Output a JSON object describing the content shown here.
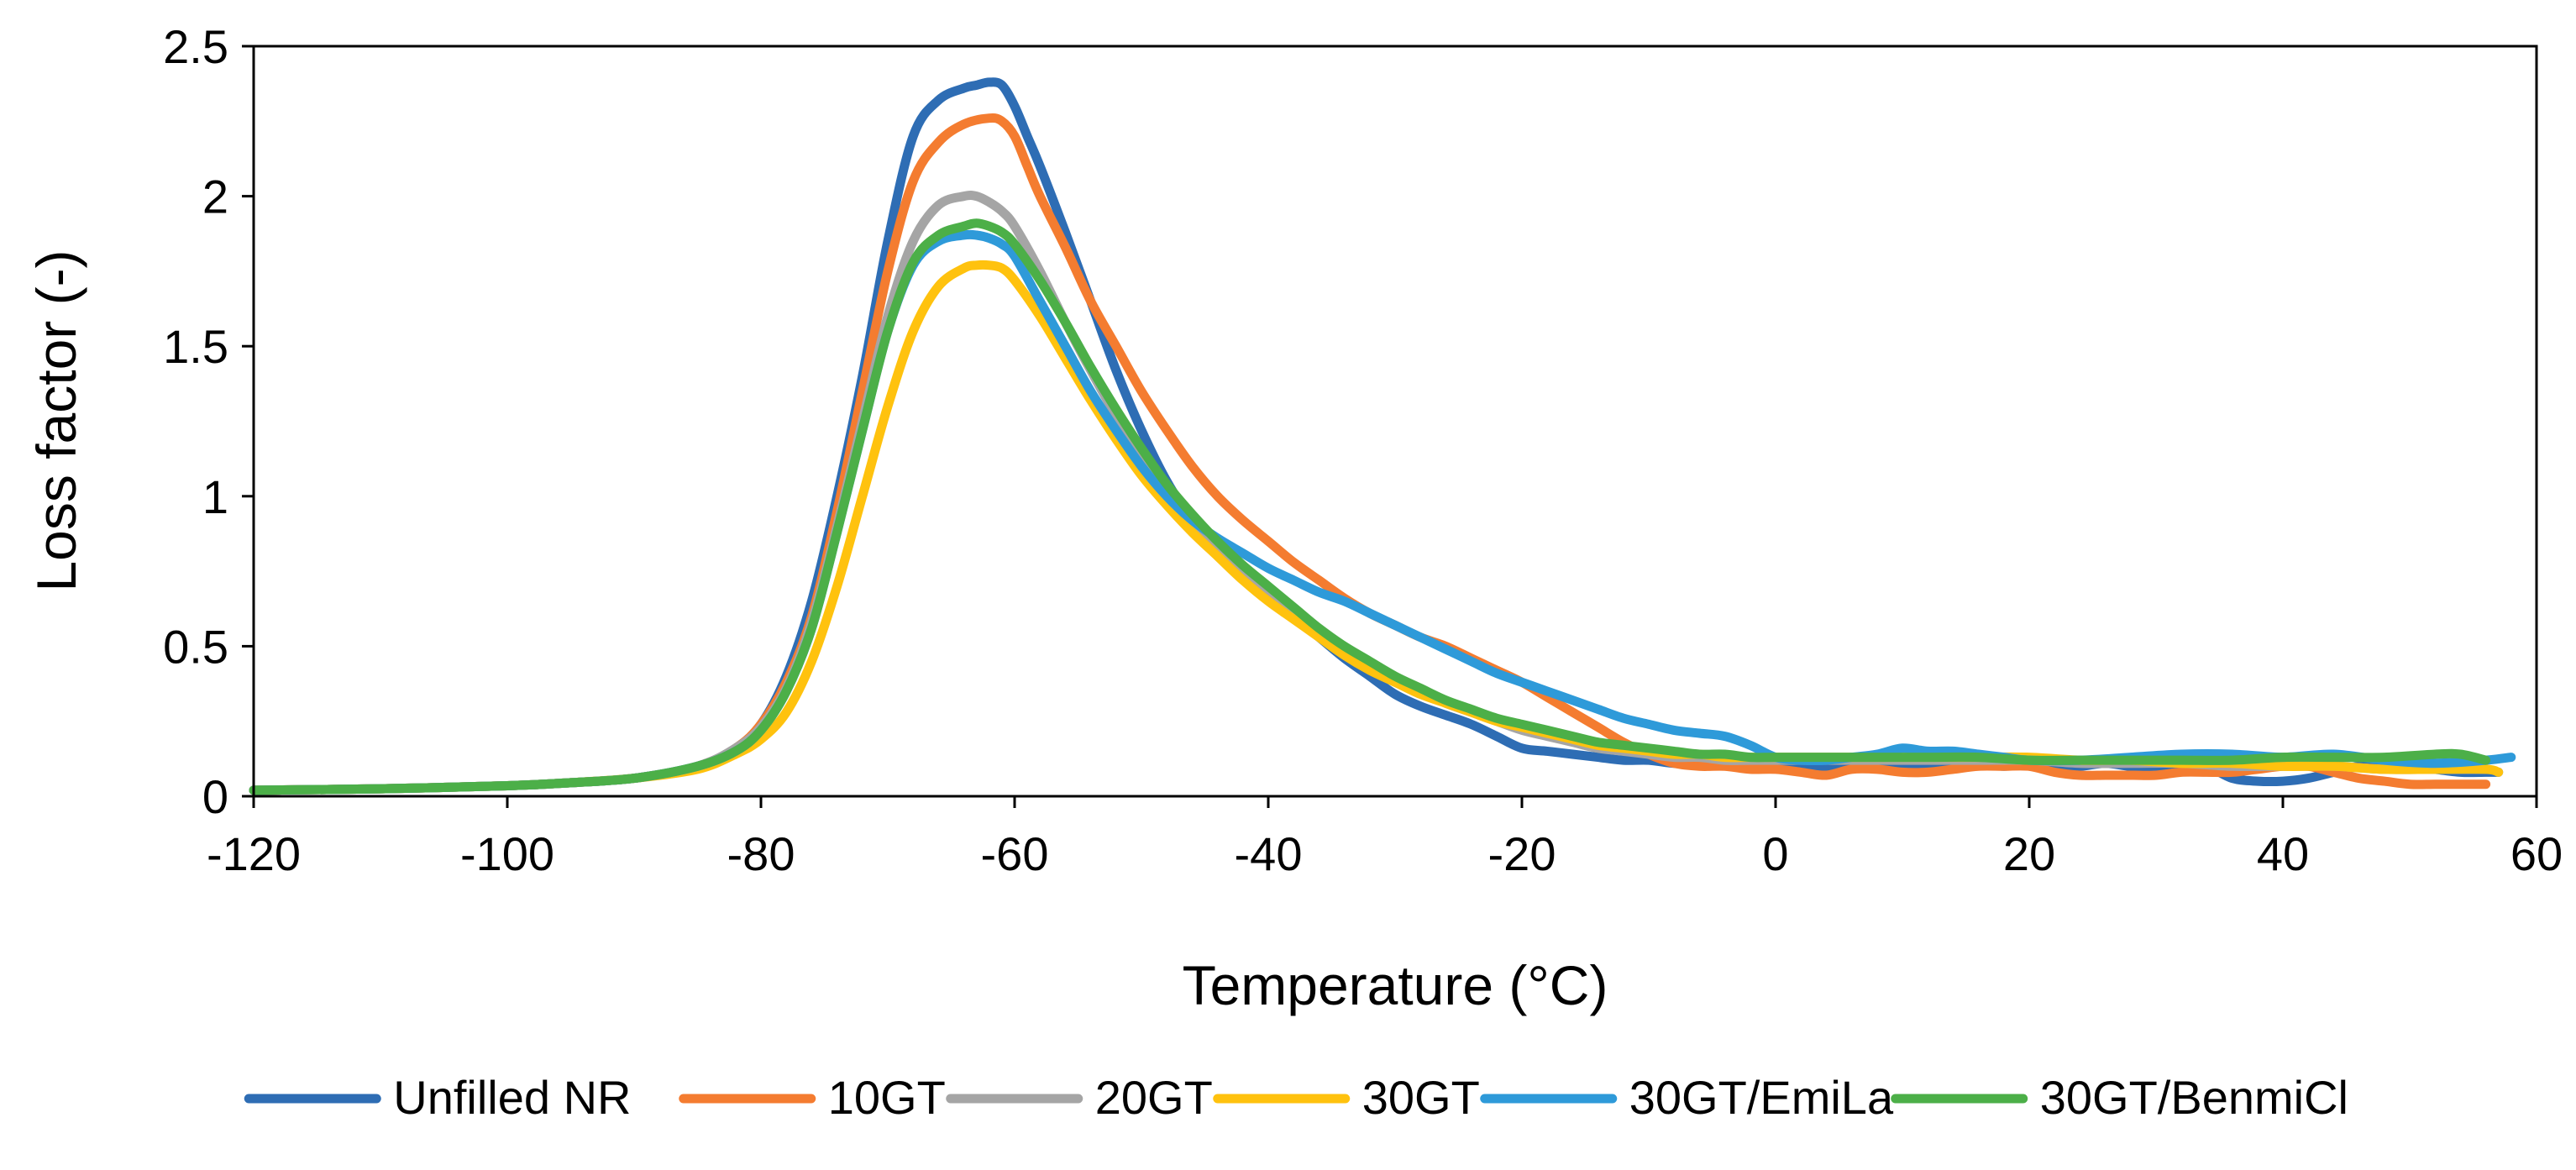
{
  "chart_data": {
    "type": "line",
    "title": "",
    "xlabel": "Temperature (°C)",
    "ylabel": "Loss factor (-)",
    "xlim": [
      -120,
      60
    ],
    "ylim": [
      0,
      2.5
    ],
    "xticks": [
      -120,
      -100,
      -80,
      -60,
      -40,
      -20,
      0,
      20,
      40,
      60
    ],
    "yticks": [
      0,
      0.5,
      1,
      1.5,
      2,
      2.5
    ],
    "xtick_labels": [
      "-120",
      "-100",
      "-80",
      "-60",
      "-40",
      "-20",
      "0",
      "20",
      "40",
      "60"
    ],
    "ytick_labels": [
      "0",
      "0.5",
      "1",
      "1.5",
      "2",
      "2.5"
    ],
    "grid": false,
    "legend_position": "bottom",
    "series": [
      {
        "name": "Unfilled NR",
        "color": "#2E6DB4",
        "x": [
          -120,
          -110,
          -100,
          -95,
          -90,
          -85,
          -82,
          -80,
          -78,
          -76,
          -74,
          -72,
          -70,
          -68,
          -66,
          -64,
          -63,
          -62,
          -61,
          -60,
          -59,
          -58,
          -56,
          -54,
          -52,
          -50,
          -48,
          -46,
          -44,
          -42,
          -40,
          -38,
          -36,
          -34,
          -32,
          -30,
          -28,
          -26,
          -24,
          -22,
          -20,
          -18,
          -16,
          -14,
          -12,
          -10,
          -8,
          -6,
          -4,
          -2,
          0,
          2,
          4,
          6,
          8,
          10,
          12,
          14,
          16,
          18,
          20,
          22,
          24,
          26,
          28,
          30,
          32,
          34,
          36,
          38,
          40,
          42,
          44,
          46,
          48,
          50,
          52,
          54,
          56,
          57
        ],
        "y": [
          0.02,
          0.025,
          0.035,
          0.045,
          0.06,
          0.1,
          0.16,
          0.24,
          0.4,
          0.65,
          1.0,
          1.4,
          1.85,
          2.2,
          2.32,
          2.36,
          2.37,
          2.38,
          2.37,
          2.3,
          2.2,
          2.1,
          1.88,
          1.65,
          1.42,
          1.22,
          1.05,
          0.92,
          0.82,
          0.74,
          0.67,
          0.6,
          0.53,
          0.46,
          0.4,
          0.34,
          0.3,
          0.27,
          0.24,
          0.2,
          0.16,
          0.15,
          0.14,
          0.13,
          0.12,
          0.12,
          0.11,
          0.11,
          0.11,
          0.1,
          0.1,
          0.1,
          0.1,
          0.1,
          0.1,
          0.1,
          0.11,
          0.1,
          0.11,
          0.1,
          0.11,
          0.1,
          0.1,
          0.11,
          0.1,
          0.1,
          0.11,
          0.1,
          0.06,
          0.05,
          0.05,
          0.06,
          0.08,
          0.1,
          0.1,
          0.1,
          0.09,
          0.08,
          0.08,
          0.08
        ]
      },
      {
        "name": "10GT",
        "color": "#F47C30",
        "x": [
          -120,
          -110,
          -100,
          -95,
          -90,
          -85,
          -82,
          -80,
          -78,
          -76,
          -74,
          -72,
          -70,
          -68,
          -66,
          -64,
          -62,
          -61,
          -60,
          -59,
          -58,
          -56,
          -54,
          -52,
          -50,
          -48,
          -46,
          -44,
          -42,
          -40,
          -38,
          -36,
          -34,
          -32,
          -30,
          -28,
          -26,
          -24,
          -22,
          -20,
          -18,
          -16,
          -14,
          -12,
          -10,
          -8,
          -6,
          -4,
          -2,
          0,
          2,
          4,
          6,
          8,
          10,
          12,
          14,
          16,
          18,
          20,
          22,
          24,
          26,
          28,
          30,
          32,
          34,
          36,
          38,
          40,
          42,
          44,
          46,
          48,
          50,
          52,
          54,
          56
        ],
        "y": [
          0.02,
          0.025,
          0.035,
          0.045,
          0.06,
          0.1,
          0.16,
          0.24,
          0.38,
          0.6,
          0.95,
          1.35,
          1.75,
          2.05,
          2.18,
          2.24,
          2.26,
          2.25,
          2.2,
          2.1,
          2.0,
          1.83,
          1.65,
          1.5,
          1.35,
          1.22,
          1.1,
          1.0,
          0.92,
          0.85,
          0.78,
          0.72,
          0.66,
          0.61,
          0.57,
          0.53,
          0.5,
          0.46,
          0.42,
          0.38,
          0.33,
          0.28,
          0.23,
          0.18,
          0.14,
          0.11,
          0.1,
          0.1,
          0.09,
          0.09,
          0.08,
          0.07,
          0.09,
          0.09,
          0.08,
          0.08,
          0.09,
          0.1,
          0.1,
          0.1,
          0.08,
          0.07,
          0.07,
          0.07,
          0.07,
          0.08,
          0.08,
          0.08,
          0.09,
          0.1,
          0.1,
          0.08,
          0.06,
          0.05,
          0.04,
          0.04,
          0.04,
          0.04
        ]
      },
      {
        "name": "20GT",
        "color": "#A5A5A5",
        "x": [
          -120,
          -110,
          -100,
          -95,
          -90,
          -85,
          -82,
          -80,
          -78,
          -76,
          -74,
          -72,
          -70,
          -68,
          -66,
          -64,
          -63,
          -62,
          -61,
          -60,
          -58,
          -56,
          -54,
          -52,
          -50,
          -48,
          -46,
          -44,
          -42,
          -40,
          -38,
          -36,
          -34,
          -32,
          -30,
          -28,
          -26,
          -24,
          -22,
          -20,
          -18,
          -16,
          -14,
          -12,
          -10,
          -8,
          -6,
          -4,
          -2,
          0,
          4,
          8,
          12,
          16,
          20,
          24,
          28,
          32,
          36,
          40,
          44,
          48,
          52,
          56
        ],
        "y": [
          0.02,
          0.025,
          0.035,
          0.045,
          0.06,
          0.1,
          0.16,
          0.23,
          0.36,
          0.58,
          0.9,
          1.25,
          1.6,
          1.85,
          1.97,
          2.0,
          2.0,
          1.98,
          1.95,
          1.9,
          1.75,
          1.58,
          1.42,
          1.27,
          1.14,
          1.02,
          0.92,
          0.83,
          0.75,
          0.68,
          0.61,
          0.55,
          0.49,
          0.44,
          0.39,
          0.35,
          0.31,
          0.28,
          0.25,
          0.22,
          0.2,
          0.18,
          0.16,
          0.15,
          0.14,
          0.13,
          0.13,
          0.12,
          0.12,
          0.12,
          0.12,
          0.12,
          0.12,
          0.12,
          0.12,
          0.11,
          0.11,
          0.11,
          0.1,
          0.1,
          0.1,
          0.09,
          0.09,
          0.09
        ]
      },
      {
        "name": "30GT",
        "color": "#FFC20E",
        "x": [
          -120,
          -110,
          -100,
          -95,
          -90,
          -85,
          -82,
          -80,
          -78,
          -76,
          -74,
          -72,
          -70,
          -68,
          -66,
          -64,
          -63,
          -62,
          -61,
          -60,
          -58,
          -56,
          -54,
          -52,
          -50,
          -48,
          -46,
          -44,
          -42,
          -40,
          -38,
          -36,
          -34,
          -32,
          -30,
          -28,
          -26,
          -24,
          -22,
          -20,
          -18,
          -16,
          -14,
          -12,
          -10,
          -8,
          -6,
          -4,
          -2,
          0,
          4,
          8,
          12,
          16,
          20,
          24,
          28,
          32,
          36,
          40,
          44,
          48,
          52,
          56,
          57
        ],
        "y": [
          0.02,
          0.025,
          0.035,
          0.045,
          0.06,
          0.09,
          0.14,
          0.19,
          0.28,
          0.45,
          0.7,
          1.0,
          1.3,
          1.55,
          1.7,
          1.76,
          1.77,
          1.77,
          1.76,
          1.72,
          1.6,
          1.46,
          1.32,
          1.19,
          1.07,
          0.97,
          0.88,
          0.8,
          0.72,
          0.65,
          0.59,
          0.53,
          0.47,
          0.42,
          0.38,
          0.34,
          0.31,
          0.28,
          0.25,
          0.23,
          0.21,
          0.19,
          0.17,
          0.16,
          0.15,
          0.14,
          0.14,
          0.13,
          0.13,
          0.13,
          0.13,
          0.13,
          0.13,
          0.13,
          0.13,
          0.12,
          0.12,
          0.11,
          0.11,
          0.1,
          0.1,
          0.09,
          0.09,
          0.09,
          0.08
        ]
      },
      {
        "name": "30GT/EmiLa",
        "color": "#2E9AD9",
        "x": [
          -120,
          -110,
          -100,
          -95,
          -90,
          -85,
          -82,
          -80,
          -78,
          -76,
          -74,
          -72,
          -70,
          -68,
          -66,
          -64,
          -63,
          -62,
          -61,
          -60,
          -58,
          -56,
          -54,
          -52,
          -50,
          -48,
          -46,
          -44,
          -42,
          -40,
          -38,
          -36,
          -34,
          -32,
          -30,
          -28,
          -26,
          -24,
          -22,
          -20,
          -18,
          -16,
          -14,
          -12,
          -10,
          -8,
          -6,
          -4,
          -2,
          0,
          2,
          4,
          6,
          8,
          10,
          12,
          14,
          16,
          18,
          20,
          24,
          28,
          32,
          36,
          40,
          44,
          48,
          52,
          56,
          58
        ],
        "y": [
          0.02,
          0.025,
          0.035,
          0.045,
          0.06,
          0.1,
          0.15,
          0.22,
          0.35,
          0.56,
          0.88,
          1.22,
          1.55,
          1.77,
          1.85,
          1.87,
          1.87,
          1.86,
          1.84,
          1.8,
          1.65,
          1.5,
          1.35,
          1.22,
          1.1,
          1.0,
          0.92,
          0.86,
          0.81,
          0.76,
          0.72,
          0.68,
          0.65,
          0.61,
          0.57,
          0.53,
          0.49,
          0.45,
          0.41,
          0.38,
          0.35,
          0.32,
          0.29,
          0.26,
          0.24,
          0.22,
          0.21,
          0.2,
          0.17,
          0.13,
          0.12,
          0.12,
          0.13,
          0.14,
          0.16,
          0.15,
          0.15,
          0.14,
          0.13,
          0.12,
          0.12,
          0.13,
          0.14,
          0.14,
          0.13,
          0.14,
          0.12,
          0.11,
          0.12,
          0.13
        ]
      },
      {
        "name": "30GT/BenmiCl",
        "color": "#4CAF48",
        "x": [
          -120,
          -110,
          -100,
          -95,
          -90,
          -85,
          -82,
          -80,
          -78,
          -76,
          -74,
          -72,
          -70,
          -68,
          -66,
          -64,
          -63,
          -62,
          -61,
          -60,
          -58,
          -56,
          -54,
          -52,
          -50,
          -48,
          -46,
          -44,
          -42,
          -40,
          -38,
          -36,
          -34,
          -32,
          -30,
          -28,
          -26,
          -24,
          -22,
          -20,
          -18,
          -16,
          -14,
          -12,
          -10,
          -8,
          -6,
          -4,
          -2,
          0,
          4,
          8,
          12,
          16,
          20,
          24,
          28,
          32,
          36,
          40,
          44,
          48,
          52,
          54,
          56
        ],
        "y": [
          0.02,
          0.025,
          0.035,
          0.045,
          0.06,
          0.1,
          0.15,
          0.22,
          0.35,
          0.56,
          0.88,
          1.22,
          1.55,
          1.78,
          1.87,
          1.9,
          1.91,
          1.9,
          1.88,
          1.84,
          1.72,
          1.58,
          1.43,
          1.29,
          1.16,
          1.04,
          0.94,
          0.85,
          0.77,
          0.7,
          0.63,
          0.56,
          0.5,
          0.45,
          0.4,
          0.36,
          0.32,
          0.29,
          0.26,
          0.24,
          0.22,
          0.2,
          0.18,
          0.17,
          0.16,
          0.15,
          0.14,
          0.14,
          0.13,
          0.13,
          0.13,
          0.13,
          0.13,
          0.13,
          0.12,
          0.12,
          0.12,
          0.12,
          0.12,
          0.13,
          0.13,
          0.13,
          0.14,
          0.14,
          0.12
        ]
      }
    ]
  }
}
